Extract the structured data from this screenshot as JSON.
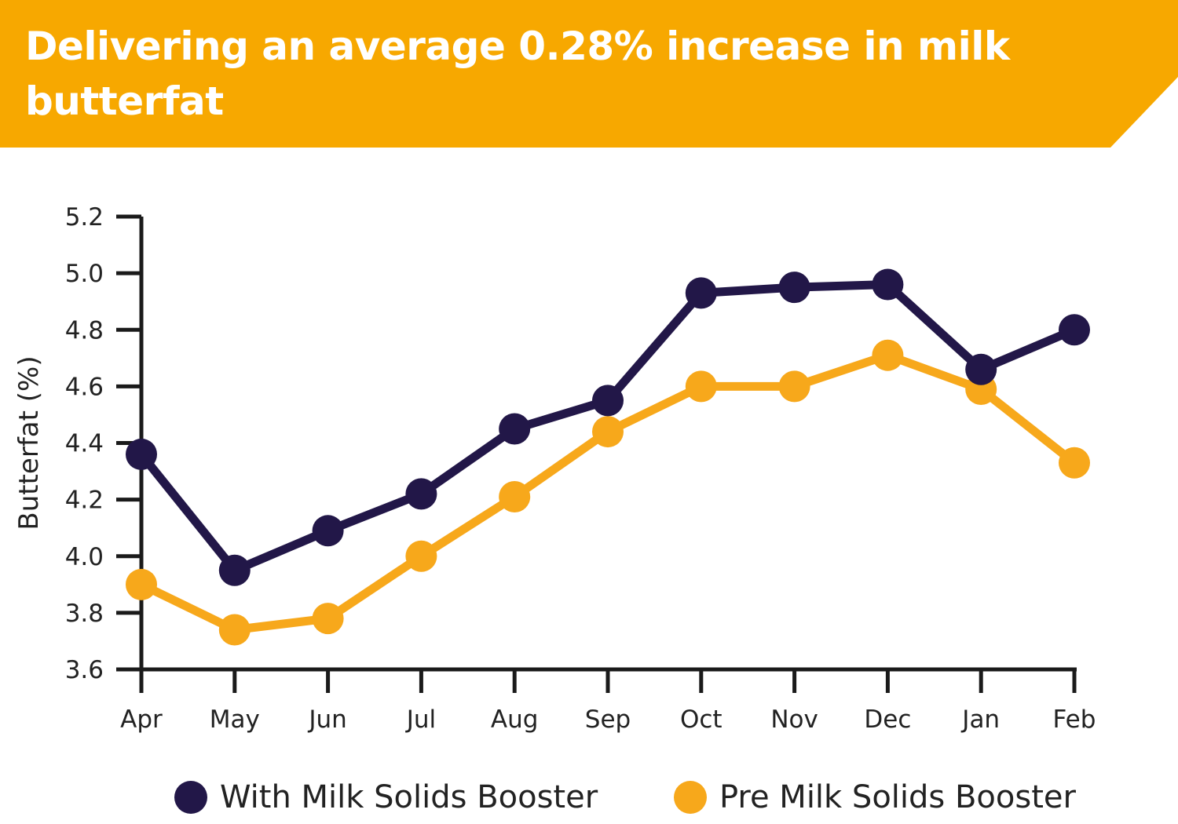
{
  "header": {
    "title": "Delivering an average 0.28% increase in milk butterfat",
    "background_color": "#F7A800"
  },
  "chart_data": {
    "type": "line",
    "title": "Delivering an average 0.28% increase in milk butterfat",
    "xlabel": "",
    "ylabel": "Butterfat (%)",
    "ylim": [
      3.6,
      5.2
    ],
    "yticks": [
      "5.2",
      "5.0",
      "4.8",
      "4.6",
      "4.4",
      "4.2",
      "4.0",
      "3.8",
      "3.6"
    ],
    "categories": [
      "Apr",
      "May",
      "Jun",
      "Jul",
      "Aug",
      "Sep",
      "Oct",
      "Nov",
      "Dec",
      "Jan",
      "Feb"
    ],
    "grid": false,
    "legend_position": "bottom",
    "series": [
      {
        "name": "With Milk Solids Booster",
        "color": "#221748",
        "values": [
          4.36,
          3.95,
          4.09,
          4.22,
          4.45,
          4.55,
          4.93,
          4.95,
          4.96,
          4.66,
          4.8
        ]
      },
      {
        "name": "Pre Milk Solids Booster",
        "color": "#F7A81B",
        "values": [
          3.9,
          3.74,
          3.78,
          4.0,
          4.21,
          4.44,
          4.6,
          4.6,
          4.71,
          4.59,
          4.33
        ]
      }
    ]
  }
}
